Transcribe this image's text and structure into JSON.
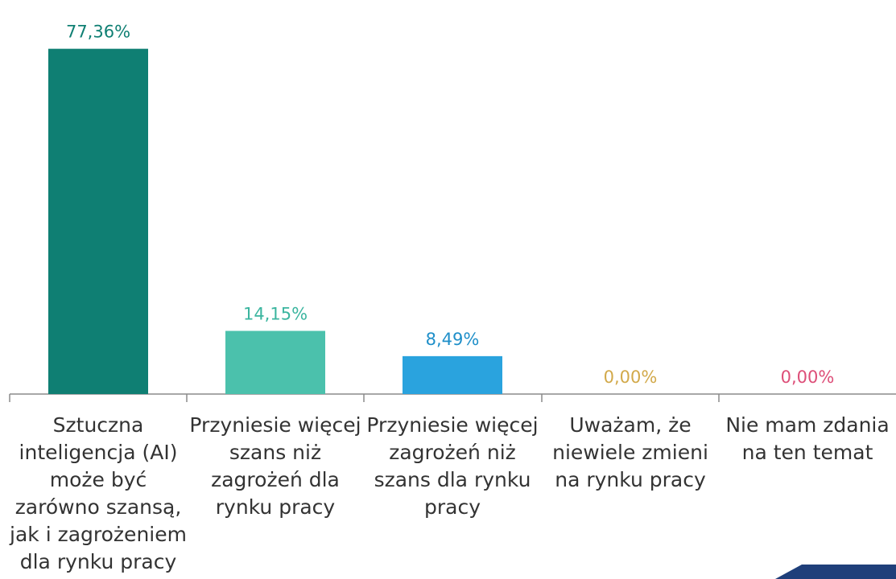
{
  "chart_data": {
    "type": "bar",
    "categories": [
      "Sztuczna\ninteligencja (AI)\nmoże być\nzarówno szansą,\njak i zagrożeniem\ndla rynku pracy",
      "Przyniesie więcej\nszans niż\nzagrożeń dla\nrynku pracy",
      "Przyniesie więcej\nzagrożeń niż\nszans dla rynku\npracy",
      "Uważam, że\nniewiele zmieni\nna rynku pracy",
      "Nie mam zdania\nna ten temat"
    ],
    "values": [
      77.36,
      14.15,
      8.49,
      0.0,
      0.0
    ],
    "value_labels": [
      "77,36%",
      "14,15%",
      "8,49%",
      "0,00%",
      "0,00%"
    ],
    "colors": [
      "#0f7f73",
      "#4bc1ac",
      "#2aa3de",
      "#d9b65a",
      "#e0557d"
    ],
    "label_colors": [
      "#0f7f73",
      "#3bb59f",
      "#1f8fc9",
      "#d2a94a",
      "#dd4e78"
    ],
    "ylim": [
      0,
      80
    ],
    "grid": false,
    "legend": "none"
  }
}
